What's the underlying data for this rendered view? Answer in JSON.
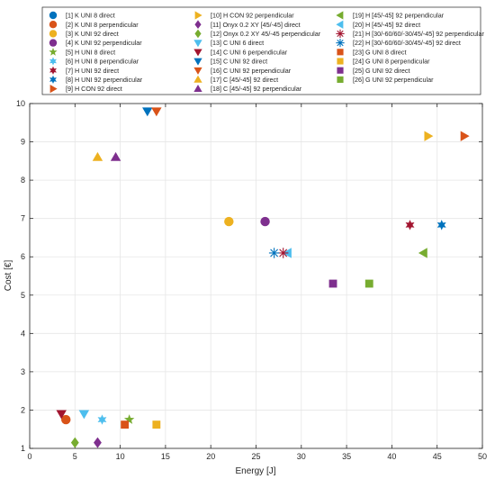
{
  "chart_data": {
    "type": "scatter",
    "xlabel": "Energy [J]",
    "ylabel": "Cost [€]",
    "xlim": [
      0,
      50
    ],
    "ylim": [
      1,
      10
    ],
    "xticks": [
      0,
      5,
      10,
      15,
      20,
      25,
      30,
      35,
      40,
      45,
      50
    ],
    "yticks": [
      1,
      2,
      3,
      4,
      5,
      6,
      7,
      8,
      9,
      10
    ],
    "grid": true,
    "legend_position": "top",
    "colors": {
      "blue": "#0072BD",
      "orange": "#D95319",
      "yellow": "#EDB120",
      "purple": "#7E2F8E",
      "green": "#77AC30",
      "cyan": "#4DBEEE",
      "darkred": "#A2142F"
    },
    "series": [
      {
        "name": "[1] K UNI 8 direct",
        "marker": "circle",
        "color": "#0072BD",
        "points": []
      },
      {
        "name": "[2] K UNI 8 perpendicular",
        "marker": "circle",
        "color": "#D95319",
        "points": [
          [
            4,
            1.75
          ]
        ]
      },
      {
        "name": "[3] K UNI 92 direct",
        "marker": "circle",
        "color": "#EDB120",
        "points": [
          [
            22,
            6.92
          ]
        ]
      },
      {
        "name": "[4] K UNI 92 perpendicular",
        "marker": "circle",
        "color": "#7E2F8E",
        "points": [
          [
            26,
            6.92
          ]
        ]
      },
      {
        "name": "[5] H UNI 8 direct",
        "marker": "star5",
        "color": "#77AC30",
        "points": [
          [
            11,
            1.75
          ]
        ]
      },
      {
        "name": "[6] H UNI 8 perpendicular",
        "marker": "star6",
        "color": "#4DBEEE",
        "points": [
          [
            8,
            1.75
          ]
        ]
      },
      {
        "name": "[7] H UNI 92 direct",
        "marker": "star6",
        "color": "#A2142F",
        "points": [
          [
            42,
            6.83
          ]
        ]
      },
      {
        "name": "[8] H UNI 92 perpendicular",
        "marker": "star6",
        "color": "#0072BD",
        "points": [
          [
            45.5,
            6.83
          ]
        ]
      },
      {
        "name": "[9] H CON 92 direct",
        "marker": "tri-right",
        "color": "#D95319",
        "points": [
          [
            48,
            9.15
          ]
        ]
      },
      {
        "name": "[10] H CON 92 perpendicular",
        "marker": "tri-right",
        "color": "#EDB120",
        "points": [
          [
            44,
            9.15
          ]
        ]
      },
      {
        "name": "[11] Onyx 0.2 XY [45/-45] direct",
        "marker": "diamond",
        "color": "#7E2F8E",
        "points": [
          [
            7.5,
            1.15
          ]
        ]
      },
      {
        "name": "[12] Onyx 0.2 XY 45/-45 perpendicular",
        "marker": "diamond",
        "color": "#77AC30",
        "points": [
          [
            5,
            1.15
          ]
        ]
      },
      {
        "name": "[13] C UNI 6 direct",
        "marker": "tri-down",
        "color": "#4DBEEE",
        "points": [
          [
            6,
            1.9
          ]
        ]
      },
      {
        "name": "[14] C UNI 6 perpendicular",
        "marker": "tri-down",
        "color": "#A2142F",
        "points": [
          [
            3.5,
            1.9
          ]
        ]
      },
      {
        "name": "[15] C UNI 92 direct",
        "marker": "tri-down",
        "color": "#0072BD",
        "points": [
          [
            13,
            9.8
          ]
        ]
      },
      {
        "name": "[16] C UNI 92 perpendicular",
        "marker": "tri-down",
        "color": "#D95319",
        "points": [
          [
            14,
            9.8
          ]
        ]
      },
      {
        "name": "[17] C [45/-45] 92 direct",
        "marker": "tri-up",
        "color": "#EDB120",
        "points": [
          [
            7.5,
            8.6
          ]
        ]
      },
      {
        "name": "[18] C [45/-45] 92 perpendicular",
        "marker": "tri-up",
        "color": "#7E2F8E",
        "points": [
          [
            9.5,
            8.6
          ]
        ]
      },
      {
        "name": "[19] H [45/-45] 92 perpendicular",
        "marker": "tri-left",
        "color": "#77AC30",
        "points": [
          [
            43.5,
            6.1
          ]
        ]
      },
      {
        "name": "[20] H [45/-45] 92 direct",
        "marker": "tri-left",
        "color": "#4DBEEE",
        "points": [
          [
            28.5,
            6.1
          ]
        ]
      },
      {
        "name": "[21] H [30/-60/60/-30/45/-45] 92 perpendicular",
        "marker": "asterisk",
        "color": "#A2142F",
        "points": [
          [
            28,
            6.1
          ]
        ]
      },
      {
        "name": "[22] H [30/-60/60/-30/45/-45] 92 direct",
        "marker": "asterisk",
        "color": "#0072BD",
        "points": [
          [
            27,
            6.1
          ]
        ]
      },
      {
        "name": "[23] G UNI 8 direct",
        "marker": "square",
        "color": "#D95319",
        "points": [
          [
            10.5,
            1.62
          ]
        ]
      },
      {
        "name": "[24] G UNI 8 perpendicular",
        "marker": "square",
        "color": "#EDB120",
        "points": [
          [
            14,
            1.62
          ]
        ]
      },
      {
        "name": "[25] G UNI 92 direct",
        "marker": "square",
        "color": "#7E2F8E",
        "points": [
          [
            33.5,
            5.3
          ]
        ]
      },
      {
        "name": "[26] G UNI 92 perpendicular",
        "marker": "square",
        "color": "#77AC30",
        "points": [
          [
            37.5,
            5.3
          ]
        ]
      }
    ]
  }
}
